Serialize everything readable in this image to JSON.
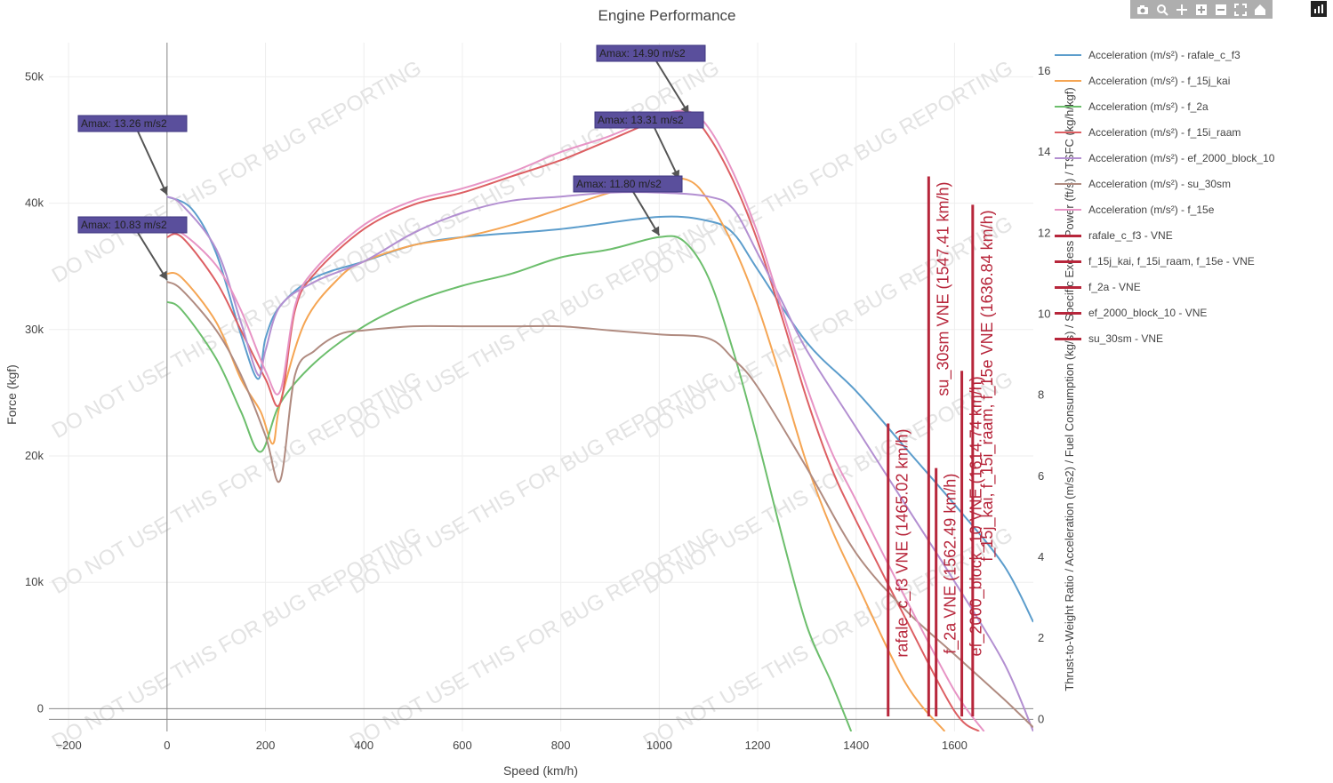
{
  "title": "Engine Performance",
  "watermark": "DO NOT USE THIS FOR BUG REPORTING",
  "toolbar": {
    "buttons": [
      {
        "name": "camera-icon",
        "glyph": "camera"
      },
      {
        "name": "zoom-icon",
        "glyph": "zoom"
      },
      {
        "name": "pan-icon",
        "glyph": "pan"
      },
      {
        "name": "zoom-in-icon",
        "glyph": "plus"
      },
      {
        "name": "zoom-out-icon",
        "glyph": "minus"
      },
      {
        "name": "autoscale-icon",
        "glyph": "autoscale"
      },
      {
        "name": "reset-axes-icon",
        "glyph": "home"
      }
    ]
  },
  "legend": {
    "items": [
      {
        "label": "Acceleration (m/s²) - rafale_c_f3",
        "color": "#5c9dcc",
        "type": "line"
      },
      {
        "label": "Acceleration (m/s²) - f_15j_kai",
        "color": "#f5a553",
        "type": "line"
      },
      {
        "label": "Acceleration (m/s²) - f_2a",
        "color": "#6cbe6c",
        "type": "line"
      },
      {
        "label": "Acceleration (m/s²) - f_15i_raam",
        "color": "#dd5f63",
        "type": "line"
      },
      {
        "label": "Acceleration (m/s²) - ef_2000_block_10",
        "color": "#b38fd1",
        "type": "line"
      },
      {
        "label": "Acceleration (m/s²) - su_30sm",
        "color": "#b08b80",
        "type": "line"
      },
      {
        "label": "Acceleration (m/s²) - f_15e",
        "color": "#e794c5",
        "type": "line"
      },
      {
        "label": "rafale_c_f3 - VNE",
        "color": "#b7263b",
        "type": "vne"
      },
      {
        "label": "f_15j_kai, f_15i_raam, f_15e - VNE",
        "color": "#b7263b",
        "type": "vne"
      },
      {
        "label": "f_2a - VNE",
        "color": "#b7263b",
        "type": "vne"
      },
      {
        "label": "ef_2000_block_10 - VNE",
        "color": "#b7263b",
        "type": "vne"
      },
      {
        "label": "su_30sm - VNE",
        "color": "#b7263b",
        "type": "vne"
      }
    ]
  },
  "chart_data": {
    "type": "line",
    "title": "Engine Performance",
    "xlabel": "Speed (km/h)",
    "ylabel": "Force (kgf)",
    "y2label": "Thrust-to-Weight Ratio / Acceleration (m/s2) / Fuel Consumption (kg/s) / Specific Excess Power (ft/s) / TSFC (kg/h/kgf)",
    "xlim": [
      -240,
      1760
    ],
    "ylim": [
      -1800,
      52700
    ],
    "y2lim": [
      -0.3,
      16.7
    ],
    "x_ticks": [
      -200,
      0,
      200,
      400,
      600,
      800,
      1000,
      1200,
      1400,
      1600
    ],
    "x_tick_labels": [
      "−200",
      "0",
      "200",
      "400",
      "600",
      "800",
      "1000",
      "1200",
      "1400",
      "1600"
    ],
    "y_ticks": [
      0,
      10000,
      20000,
      30000,
      40000,
      50000
    ],
    "y_tick_labels": [
      "0",
      "10k",
      "20k",
      "30k",
      "40k",
      "50k"
    ],
    "y2_ticks": [
      0,
      2,
      4,
      6,
      8,
      10,
      12,
      14,
      16
    ],
    "y2_tick_labels": [
      "0",
      "2",
      "4",
      "6",
      "8",
      "10",
      "12",
      "14",
      "16"
    ],
    "grid": true,
    "legend_position": "right",
    "series": [
      {
        "name": "Acceleration (m/s²) - rafale_c_f3",
        "color": "#5c9dcc",
        "axis": "y2",
        "x": [
          0,
          50,
          100,
          150,
          185,
          200,
          230,
          300,
          400,
          500,
          600,
          800,
          1000,
          1100,
          1150,
          1200,
          1300,
          1400,
          1500,
          1600,
          1700,
          1760
        ],
        "y": [
          12.9,
          12.6,
          11.5,
          9.5,
          8.4,
          9.4,
          10.2,
          10.9,
          11.3,
          11.7,
          11.9,
          12.1,
          12.4,
          12.3,
          12.0,
          11.1,
          9.3,
          8.1,
          6.7,
          5.3,
          3.8,
          2.4
        ]
      },
      {
        "name": "Acceleration (m/s²) - f_15j_kai",
        "color": "#f5a553",
        "axis": "y2",
        "x": [
          0,
          30,
          100,
          150,
          190,
          215,
          230,
          280,
          350,
          400,
          500,
          600,
          700,
          800,
          900,
          1000,
          1060,
          1100,
          1150,
          1200,
          1250,
          1300,
          1350,
          1400,
          1500,
          1580
        ],
        "y": [
          11.0,
          10.9,
          9.8,
          8.4,
          7.6,
          6.8,
          7.8,
          9.8,
          10.9,
          11.3,
          11.7,
          11.9,
          12.2,
          12.6,
          13.0,
          13.3,
          13.3,
          12.8,
          11.7,
          10.2,
          8.3,
          6.3,
          4.7,
          3.4,
          0.9,
          -0.3
        ]
      },
      {
        "name": "Acceleration (m/s²) - f_2a",
        "color": "#6cbe6c",
        "axis": "y2",
        "x": [
          0,
          30,
          100,
          150,
          190,
          230,
          300,
          400,
          500,
          600,
          700,
          800,
          900,
          1000,
          1050,
          1100,
          1150,
          1200,
          1250,
          1300,
          1350,
          1390
        ],
        "y": [
          10.3,
          10.1,
          8.9,
          7.6,
          6.6,
          7.8,
          8.8,
          9.7,
          10.3,
          10.7,
          11.0,
          11.4,
          11.6,
          11.9,
          11.8,
          10.9,
          9.1,
          6.9,
          4.5,
          2.3,
          0.9,
          -0.3
        ]
      },
      {
        "name": "Acceleration (m/s²) - f_15i_raam",
        "color": "#dd5f63",
        "axis": "y2",
        "x": [
          0,
          30,
          100,
          150,
          200,
          230,
          260,
          300,
          400,
          500,
          600,
          700,
          800,
          900,
          1000,
          1060,
          1100,
          1150,
          1200,
          1250,
          1300,
          1350,
          1400,
          1500,
          1600,
          1650
        ],
        "y": [
          11.9,
          11.9,
          10.8,
          9.6,
          8.4,
          7.8,
          10.1,
          11.0,
          12.1,
          12.7,
          13.0,
          13.4,
          13.8,
          14.3,
          14.8,
          14.9,
          14.4,
          13.3,
          11.8,
          9.9,
          7.9,
          6.2,
          4.9,
          2.5,
          0.2,
          -0.3
        ]
      },
      {
        "name": "Acceleration (m/s²) - ef_2000_block_10",
        "color": "#b38fd1",
        "axis": "y2",
        "x": [
          0,
          30,
          100,
          150,
          185,
          200,
          230,
          300,
          400,
          500,
          600,
          700,
          800,
          900,
          1000,
          1100,
          1150,
          1200,
          1250,
          1300,
          1400,
          1500,
          1600,
          1700,
          1760
        ],
        "y": [
          12.9,
          12.7,
          11.6,
          9.8,
          8.5,
          9.1,
          10.2,
          10.8,
          11.3,
          12.0,
          12.5,
          12.8,
          12.9,
          13.0,
          13.0,
          12.9,
          12.6,
          11.5,
          10.3,
          9.1,
          7.2,
          5.3,
          3.4,
          1.4,
          -0.3
        ]
      },
      {
        "name": "Acceleration (m/s²) - su_30sm",
        "color": "#b08b80",
        "axis": "y2",
        "x": [
          0,
          30,
          100,
          150,
          200,
          230,
          260,
          300,
          350,
          400,
          500,
          600,
          700,
          800,
          900,
          1000,
          1100,
          1150,
          1200,
          1300,
          1400,
          1500,
          1600,
          1700,
          1760
        ],
        "y": [
          10.8,
          10.6,
          9.6,
          8.5,
          7.0,
          5.9,
          8.5,
          9.1,
          9.5,
          9.6,
          9.7,
          9.7,
          9.7,
          9.7,
          9.6,
          9.5,
          9.4,
          8.9,
          8.2,
          6.2,
          4.1,
          2.7,
          1.6,
          0.5,
          -0.2
        ]
      },
      {
        "name": "Acceleration (m/s²) - f_15e",
        "color": "#e794c5",
        "axis": "y2",
        "x": [
          0,
          30,
          100,
          150,
          200,
          230,
          260,
          300,
          400,
          500,
          600,
          700,
          800,
          900,
          1000,
          1060,
          1100,
          1150,
          1200,
          1250,
          1300,
          1350,
          1400,
          1500,
          1600,
          1660
        ],
        "y": [
          12.0,
          12.0,
          11.2,
          10.1,
          8.6,
          8.1,
          10.2,
          11.1,
          12.2,
          12.8,
          13.1,
          13.5,
          14.0,
          14.4,
          14.9,
          15.0,
          14.6,
          13.5,
          12.0,
          10.1,
          8.2,
          6.6,
          5.4,
          3.0,
          0.7,
          -0.3
        ]
      }
    ],
    "vne_lines": [
      {
        "name": "rafale_c_f3 - VNE",
        "x": 1465.02,
        "y_top": 7.3,
        "label": "rafale_c_f3 VNE (1465.02 km/h)"
      },
      {
        "name": "su_30sm - VNE",
        "x": 1547.41,
        "y_top": 13.4,
        "label": "su_30sm VNE (1547.41 km/h)"
      },
      {
        "name": "f_2a - VNE",
        "x": 1562.49,
        "y_top": 6.2,
        "label": "f_2a VNE (1562.49 km/h)"
      },
      {
        "name": "ef_2000_block_10 - VNE",
        "x": 1614.74,
        "y_top": 8.6,
        "label": "ef_2000_block_10 VNE (1614.74 km/h)"
      },
      {
        "name": "f_15j_kai, f_15i_raam, f_15e - VNE",
        "x": 1636.84,
        "y_top": 12.7,
        "label": "f_15j_kai, f_15i_raam, f_15e VNE (1636.84 km/h)"
      }
    ],
    "annotations": [
      {
        "text": "Amax: 13.26 m/s2",
        "x": 0,
        "y": 12.9
      },
      {
        "text": "Amax: 10.83 m/s2",
        "x": 0,
        "y": 10.8
      },
      {
        "text": "Amax: 14.90 m/s2",
        "x": 1060,
        "y": 14.9
      },
      {
        "text": "Amax: 13.31 m/s2",
        "x": 1040,
        "y": 13.3
      },
      {
        "text": "Amax: 11.80 m/s2",
        "x": 1000,
        "y": 11.9
      }
    ]
  }
}
